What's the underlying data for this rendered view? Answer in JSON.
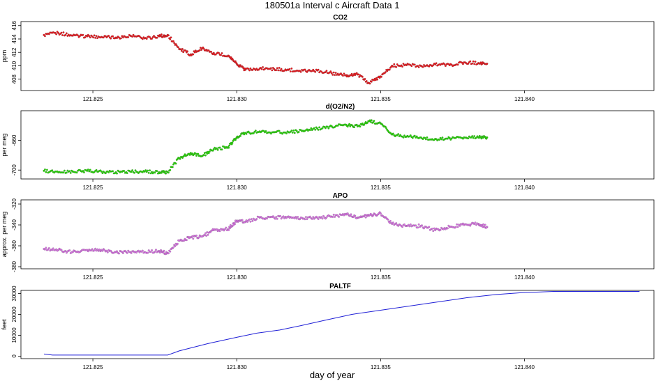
{
  "figure": {
    "title": "180501a   Interval c Aircraft Data 1",
    "xlabel": "day of year"
  },
  "colors": {
    "co2": "#e8141a",
    "o2n2": "#22d400",
    "apo": "#d66ee2",
    "paltf": "#1f1fd6",
    "frame": "#000000",
    "background": "#ffffff"
  },
  "chart_data": [
    {
      "id": "co2",
      "type": "scatter",
      "title": "CO2",
      "ylabel": "ppm",
      "xlim": [
        121.8225,
        121.8445
      ],
      "ylim": [
        406.3,
        416.6
      ],
      "xticks": [
        121.825,
        121.83,
        121.835,
        121.84
      ],
      "xtick_labels": [
        "121.825",
        "121.830",
        "121.835",
        "121.840"
      ],
      "yticks": [
        408,
        410,
        412,
        414,
        416
      ],
      "ytick_labels": [
        "408",
        "410",
        "412",
        "414",
        "416"
      ],
      "series": [
        {
          "x": [
            121.8233,
            121.8238,
            121.8243,
            121.8248,
            121.8253,
            121.8258,
            121.8263,
            121.8268,
            121.8273,
            121.8276,
            121.828,
            121.8284,
            121.8288,
            121.8292,
            121.8297,
            121.83,
            121.8303,
            121.8308,
            121.8313,
            121.8318,
            121.8323,
            121.8328,
            121.8333,
            121.8338,
            121.8342,
            121.8346,
            121.835,
            121.8354,
            121.8359,
            121.8364,
            121.8369,
            121.8374,
            121.8379,
            121.8384,
            121.8387
          ],
          "y": [
            414.6,
            414.9,
            414.5,
            414.4,
            414.3,
            414.2,
            414.5,
            414.1,
            414.4,
            414.6,
            412.5,
            411.7,
            412.6,
            411.9,
            411.5,
            410.3,
            409.4,
            409.6,
            409.5,
            409.4,
            409.3,
            409.3,
            408.9,
            408.6,
            408.7,
            407.4,
            408.4,
            410.0,
            410.1,
            410.0,
            410.2,
            410.1,
            410.5,
            410.4,
            410.3
          ]
        }
      ]
    },
    {
      "id": "o2n2",
      "type": "scatter",
      "title": "d(O2/N2)",
      "ylabel": "per meg",
      "xlim": [
        121.8225,
        121.8445
      ],
      "ylim": [
        -712,
        -620
      ],
      "xticks": [
        121.825,
        121.83,
        121.835,
        121.84
      ],
      "xtick_labels": [
        "121.825",
        "121.830",
        "121.835",
        "121.840"
      ],
      "yticks": [
        -700,
        -660
      ],
      "ytick_labels": [
        "-700",
        "-660"
      ],
      "series": [
        {
          "x": [
            121.8233,
            121.8238,
            121.8243,
            121.8248,
            121.8253,
            121.8258,
            121.8263,
            121.8268,
            121.8273,
            121.8276,
            121.828,
            121.8284,
            121.8288,
            121.8292,
            121.8297,
            121.83,
            121.8303,
            121.8308,
            121.8313,
            121.8318,
            121.8323,
            121.8328,
            121.8333,
            121.8338,
            121.8342,
            121.8346,
            121.835,
            121.8354,
            121.8359,
            121.8364,
            121.8369,
            121.8374,
            121.8379,
            121.8384,
            121.8387
          ],
          "y": [
            -701,
            -703,
            -702,
            -701,
            -702,
            -703,
            -702,
            -702,
            -703,
            -703,
            -684,
            -677,
            -681,
            -672,
            -669,
            -656,
            -650,
            -648,
            -649,
            -649,
            -647,
            -644,
            -641,
            -639,
            -641,
            -634,
            -637,
            -652,
            -655,
            -656,
            -658,
            -657,
            -656,
            -656,
            -656
          ]
        }
      ]
    },
    {
      "id": "apo",
      "type": "scatter",
      "title": "APO",
      "ylabel": "approx. per meg",
      "xlim": [
        121.8225,
        121.8445
      ],
      "ylim": [
        -382,
        -316
      ],
      "xticks": [
        121.825,
        121.83,
        121.835,
        121.84
      ],
      "xtick_labels": [
        "121.825",
        "121.830",
        "121.835",
        "121.840"
      ],
      "yticks": [
        -380,
        -360,
        -340,
        -320
      ],
      "ytick_labels": [
        "-380",
        "-360",
        "-340",
        "-320"
      ],
      "series": [
        {
          "x": [
            121.8233,
            121.8238,
            121.8243,
            121.8248,
            121.8253,
            121.8258,
            121.8263,
            121.8268,
            121.8273,
            121.8276,
            121.828,
            121.8284,
            121.8288,
            121.8292,
            121.8297,
            121.83,
            121.8303,
            121.8308,
            121.8313,
            121.8318,
            121.8323,
            121.8328,
            121.8333,
            121.8338,
            121.8342,
            121.8346,
            121.835,
            121.8354,
            121.8359,
            121.8364,
            121.8369,
            121.8374,
            121.8379,
            121.8384,
            121.8387
          ],
          "y": [
            -363,
            -364,
            -366,
            -364,
            -364,
            -366,
            -366,
            -366,
            -365,
            -367,
            -355,
            -352,
            -351,
            -345,
            -344,
            -336,
            -337,
            -333,
            -333,
            -332,
            -334,
            -333,
            -332,
            -330,
            -333,
            -331,
            -329,
            -339,
            -341,
            -341,
            -345,
            -342,
            -340,
            -339,
            -342
          ]
        }
      ]
    },
    {
      "id": "paltf",
      "type": "line",
      "title": "PALTF",
      "ylabel": "feet",
      "xlim": [
        121.8225,
        121.8445
      ],
      "ylim": [
        -1200,
        31500
      ],
      "xticks": [
        121.825,
        121.83,
        121.835,
        121.84
      ],
      "xtick_labels": [
        "121.825",
        "121.830",
        "121.835",
        "121.840"
      ],
      "yticks": [
        0,
        10000,
        20000,
        30000
      ],
      "ytick_labels": [
        "0",
        "10000",
        "20000",
        "30000"
      ],
      "series": [
        {
          "x": [
            121.8233,
            121.8236,
            121.824,
            121.825,
            121.826,
            121.827,
            121.8276,
            121.828,
            121.829,
            121.83,
            121.8307,
            121.8315,
            121.8322,
            121.833,
            121.834,
            121.835,
            121.836,
            121.837,
            121.838,
            121.839,
            121.84,
            121.8405,
            121.841,
            121.842,
            121.843,
            121.844
          ],
          "y": [
            1000,
            500,
            500,
            500,
            500,
            500,
            500,
            2500,
            6000,
            9000,
            11000,
            12500,
            14500,
            17000,
            20000,
            22000,
            24000,
            26000,
            28000,
            29500,
            30500,
            30700,
            31000,
            31000,
            31000,
            31000
          ]
        }
      ]
    }
  ]
}
